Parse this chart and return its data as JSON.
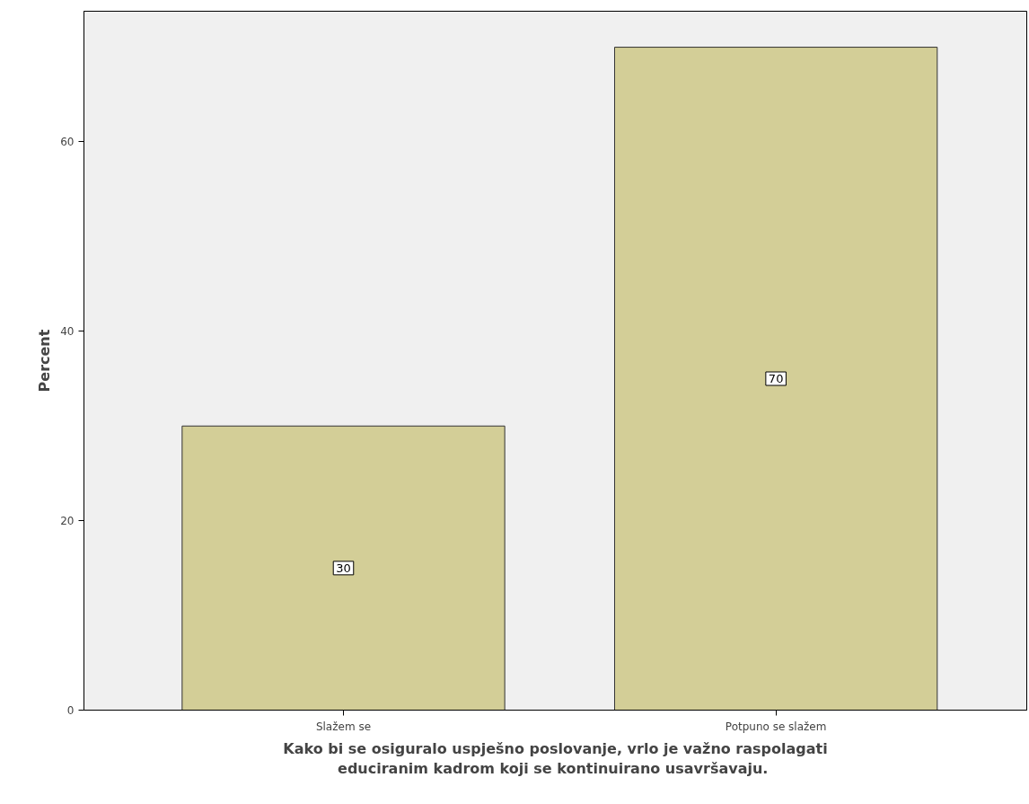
{
  "chart_data": {
    "type": "bar",
    "xlabel": "Kako bi se osiguralo uspješno poslovanje, vrlo je važno raspolagati\neduciranim kadrom koji se kontinuirano  usavršavaju.",
    "ylabel": "Percent",
    "categories": [
      "Slažem se",
      "Potpuno se slažem"
    ],
    "values": [
      30,
      70
    ],
    "color": "#d3ce97",
    "data_labels": true,
    "ylim": [
      0,
      73.8
    ],
    "yticks": [
      0,
      20,
      40,
      60
    ],
    "grid": false
  }
}
